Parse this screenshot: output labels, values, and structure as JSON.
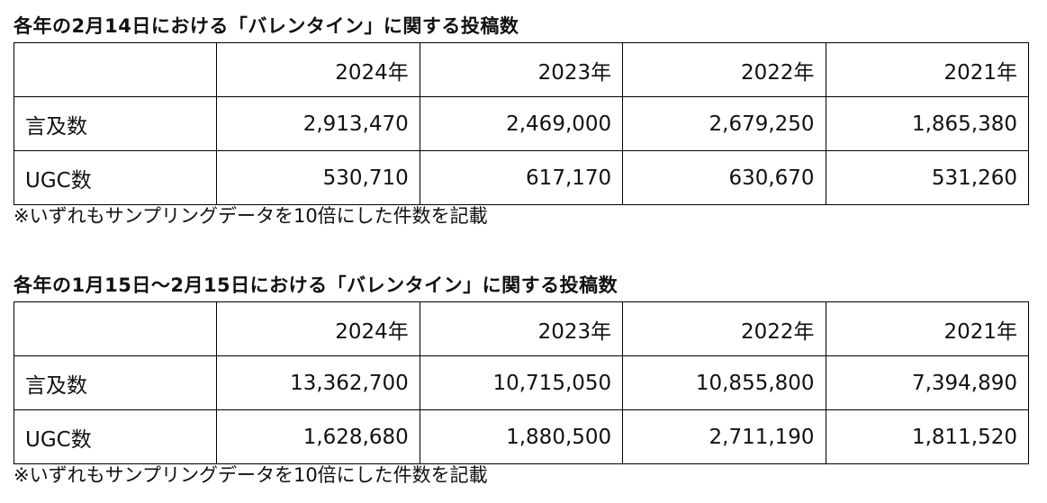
{
  "tables": [
    {
      "title": "各年の2月14日における「バレンタイン」に関する投稿数",
      "columns": [
        "",
        "2024年",
        "2023年",
        "2022年",
        "2021年"
      ],
      "rows": [
        {
          "label": "言及数",
          "values": [
            "2,913,470",
            "2,469,000",
            "2,679,250",
            "1,865,380"
          ]
        },
        {
          "label": "UGC数",
          "values": [
            "530,710",
            "617,170",
            "630,670",
            "531,260"
          ]
        }
      ],
      "note": "※いずれもサンプリングデータを10倍にした件数を記載"
    },
    {
      "title": "各年の1月15日〜2月15日における「バレンタイン」に関する投稿数",
      "columns": [
        "",
        "2024年",
        "2023年",
        "2022年",
        "2021年"
      ],
      "rows": [
        {
          "label": "言及数",
          "values": [
            "13,362,700",
            "10,715,050",
            "10,855,800",
            "7,394,890"
          ]
        },
        {
          "label": "UGC数",
          "values": [
            "1,628,680",
            "1,880,500",
            "2,711,190",
            "1,811,520"
          ]
        }
      ],
      "note": "※いずれもサンプリングデータを10倍にした件数を記載"
    }
  ]
}
